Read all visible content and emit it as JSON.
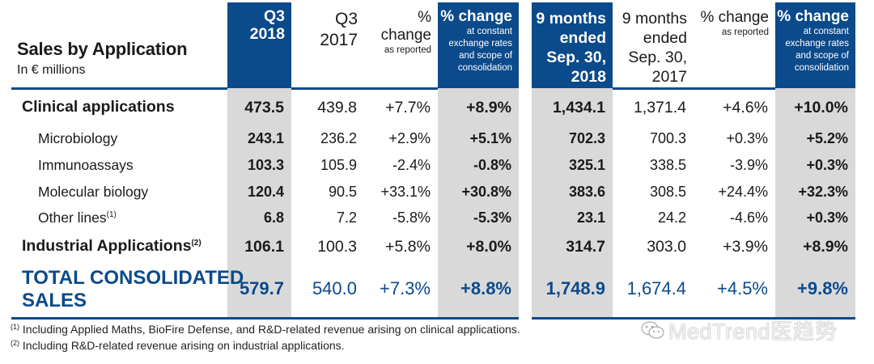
{
  "title": "Sales by Application",
  "subtitle": "In € millions",
  "colors": {
    "brand_blue": "#0b4a8b",
    "highlight_gray": "#d9d9d9"
  },
  "columns": [
    {
      "line1": "Q3",
      "line2": "2018"
    },
    {
      "line1": "Q3",
      "line2": "2017"
    },
    {
      "main": "% change",
      "sub": "as reported"
    },
    {
      "main": "% change",
      "sub1": "at constant",
      "sub2": "exchange rates",
      "sub3": "and scope of",
      "sub4": "consolidation"
    },
    {
      "line1": "9 months",
      "line2": "ended",
      "line3": "Sep. 30,",
      "line4": "2018"
    },
    {
      "line1": "9 months",
      "line2": "ended",
      "line3": "Sep. 30,",
      "line4": "2017"
    },
    {
      "main": "% change",
      "sub": "as reported"
    },
    {
      "main": "% change",
      "sub1": "at constant",
      "sub2": "exchange rates",
      "sub3": "and scope of",
      "sub4": "consolidation"
    }
  ],
  "rows": [
    {
      "label": "Clinical applications",
      "sup": "",
      "values": [
        "473.5",
        "439.8",
        "+7.7%",
        "+8.9%",
        "1,434.1",
        "1,371.4",
        "+4.6%",
        "+10.0%"
      ]
    },
    {
      "label": "Microbiology",
      "sup": "",
      "values": [
        "243.1",
        "236.2",
        "+2.9%",
        "+5.1%",
        "702.3",
        "700.3",
        "+0.3%",
        "+5.2%"
      ]
    },
    {
      "label": "Immunoassays",
      "sup": "",
      "values": [
        "103.3",
        "105.9",
        "-2.4%",
        "-0.8%",
        "325.1",
        "338.5",
        "-3.9%",
        "+0.3%"
      ]
    },
    {
      "label": "Molecular biology",
      "sup": "",
      "values": [
        "120.4",
        "90.5",
        "+33.1%",
        "+30.8%",
        "383.6",
        "308.5",
        "+24.4%",
        "+32.3%"
      ]
    },
    {
      "label": "Other lines",
      "sup": "(1)",
      "values": [
        "6.8",
        "7.2",
        "-5.8%",
        "-5.3%",
        "23.1",
        "24.2",
        "-4.6%",
        "+0.3%"
      ]
    },
    {
      "label": "Industrial Applications",
      "sup": "(2)",
      "values": [
        "106.1",
        "100.3",
        "+5.8%",
        "+8.0%",
        "314.7",
        "303.0",
        "+3.9%",
        "+8.9%"
      ]
    },
    {
      "label_line1": "TOTAL CONSOLIDATED",
      "label_line2": "SALES",
      "values": [
        "579.7",
        "540.0",
        "+7.3%",
        "+8.8%",
        "1,748.9",
        "1,674.4",
        "+4.5%",
        "+9.8%"
      ]
    }
  ],
  "footnotes": [
    {
      "mark": "(1)",
      "text": "Including Applied Maths, BioFire Defense, and R&D-related revenue arising on clinical applications."
    },
    {
      "mark": "(2)",
      "text": "Including R&D-related revenue arising on industrial applications."
    }
  ],
  "watermark": {
    "text": "MedTrend医趋势",
    "icon": "wechat-icon"
  }
}
